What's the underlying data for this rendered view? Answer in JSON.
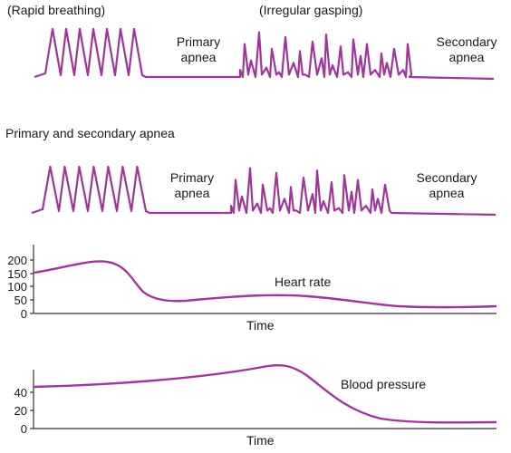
{
  "colors": {
    "trace": "#a0359b",
    "axis": "#333333",
    "text": "#1a1a1a"
  },
  "top_trace": {
    "label_left": "(Rapid breathing)",
    "label_middle": "(Irregular gasping)",
    "primary_line1": "Primary",
    "primary_line2": "apnea",
    "secondary_line1": "Secondary",
    "secondary_line2": "apnea"
  },
  "middle_title": "Primary and secondary apnea",
  "middle_trace": {
    "primary_line1": "Primary",
    "primary_line2": "apnea",
    "secondary_line1": "Secondary",
    "secondary_line2": "apnea"
  },
  "heart_rate_chart": {
    "series_label": "Heart rate",
    "xlabel": "Time",
    "ticks": [
      "200",
      "150",
      "100",
      "50",
      "0"
    ]
  },
  "blood_pressure_chart": {
    "series_label": "Blood pressure",
    "xlabel": "Time",
    "ticks": [
      "40",
      "20",
      "0"
    ]
  }
}
